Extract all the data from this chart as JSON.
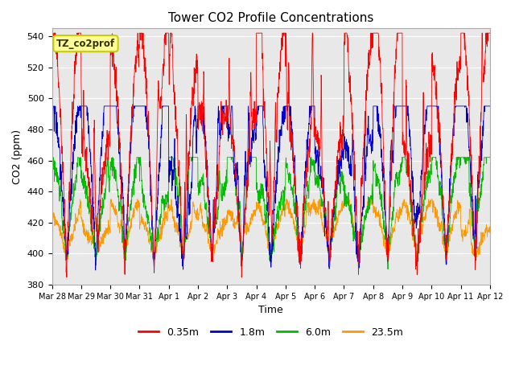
{
  "title": "Tower CO2 Profile Concentrations",
  "xlabel": "Time",
  "ylabel": "CO2 (ppm)",
  "ylim": [
    380,
    545
  ],
  "yticks": [
    380,
    400,
    420,
    440,
    460,
    480,
    500,
    520,
    540
  ],
  "legend_label": "TZ_co2prof",
  "series_labels": [
    "0.35m",
    "1.8m",
    "6.0m",
    "23.5m"
  ],
  "series_colors": [
    "#ff0000",
    "#0000cc",
    "#00bb00",
    "#ff9900"
  ],
  "background_color": "#e8e8e8",
  "figure_background": "#ffffff",
  "tick_dates": [
    "Mar 28",
    "Mar 29",
    "Mar 30",
    "Mar 31",
    "Apr 1",
    "Apr 2",
    "Apr 3",
    "Apr 4",
    "Apr 5",
    "Apr 6",
    "Apr 7",
    "Apr 8",
    "Apr 9",
    "Apr 10",
    "Apr 11",
    "Apr 12"
  ],
  "n_points": 2160,
  "seed": 42
}
